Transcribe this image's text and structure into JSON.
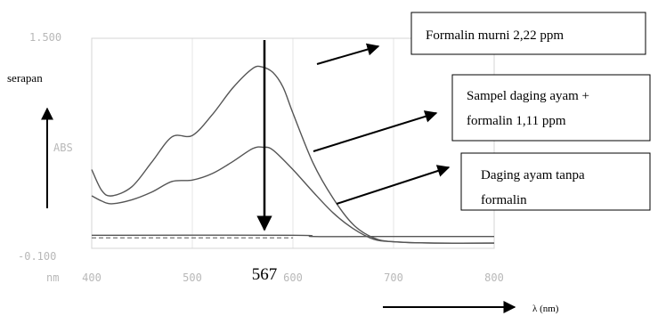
{
  "chart_data": {
    "type": "line",
    "title": "",
    "xlabel": "λ (nm)",
    "ylabel": "serapan",
    "x_unit": "nm",
    "y_axis_text": "ABS",
    "xlim": [
      400,
      800
    ],
    "ylim": [
      -0.1,
      1.5
    ],
    "x_ticks": [
      "400",
      "500",
      "600",
      "700",
      "800"
    ],
    "y_ticks": [
      "1.500",
      "-0.100"
    ],
    "grid": true,
    "peak_label": "567",
    "colors": {
      "curve": "#555555",
      "baseline": "#666666",
      "arrow": "#000000",
      "grid": "#d4d4d4"
    },
    "series": [
      {
        "name": "Formalin murni 2,22 ppm",
        "style": "solid",
        "x": [
          400,
          600,
          620,
          680,
          800
        ],
        "y": [
          0.0,
          0.0,
          -0.01,
          -0.01,
          -0.01
        ]
      },
      {
        "name": "Sampel daging ayam + formalin 1,11 ppm",
        "style": "solid",
        "x": [
          400,
          410,
          420,
          440,
          460,
          480,
          500,
          520,
          540,
          560,
          570,
          580,
          590,
          600,
          620,
          640,
          660,
          680,
          700,
          740,
          800
        ],
        "y": [
          0.5,
          0.34,
          0.3,
          0.37,
          0.56,
          0.75,
          0.76,
          0.92,
          1.12,
          1.27,
          1.28,
          1.24,
          1.13,
          0.93,
          0.55,
          0.28,
          0.08,
          -0.02,
          -0.05,
          -0.06,
          -0.06
        ]
      },
      {
        "name": "Daging ayam tanpa formalin",
        "style": "solid",
        "x": [
          400,
          410,
          420,
          440,
          460,
          480,
          500,
          520,
          540,
          560,
          570,
          580,
          600,
          620,
          640,
          660,
          680,
          700,
          740,
          800
        ],
        "y": [
          0.3,
          0.26,
          0.24,
          0.27,
          0.33,
          0.41,
          0.42,
          0.47,
          0.56,
          0.66,
          0.67,
          0.65,
          0.5,
          0.33,
          0.17,
          0.05,
          -0.03,
          -0.05,
          -0.06,
          -0.06
        ]
      },
      {
        "name": "",
        "style": "dashed",
        "x": [
          400,
          600
        ],
        "y": [
          -0.02,
          -0.02
        ]
      }
    ]
  }
}
